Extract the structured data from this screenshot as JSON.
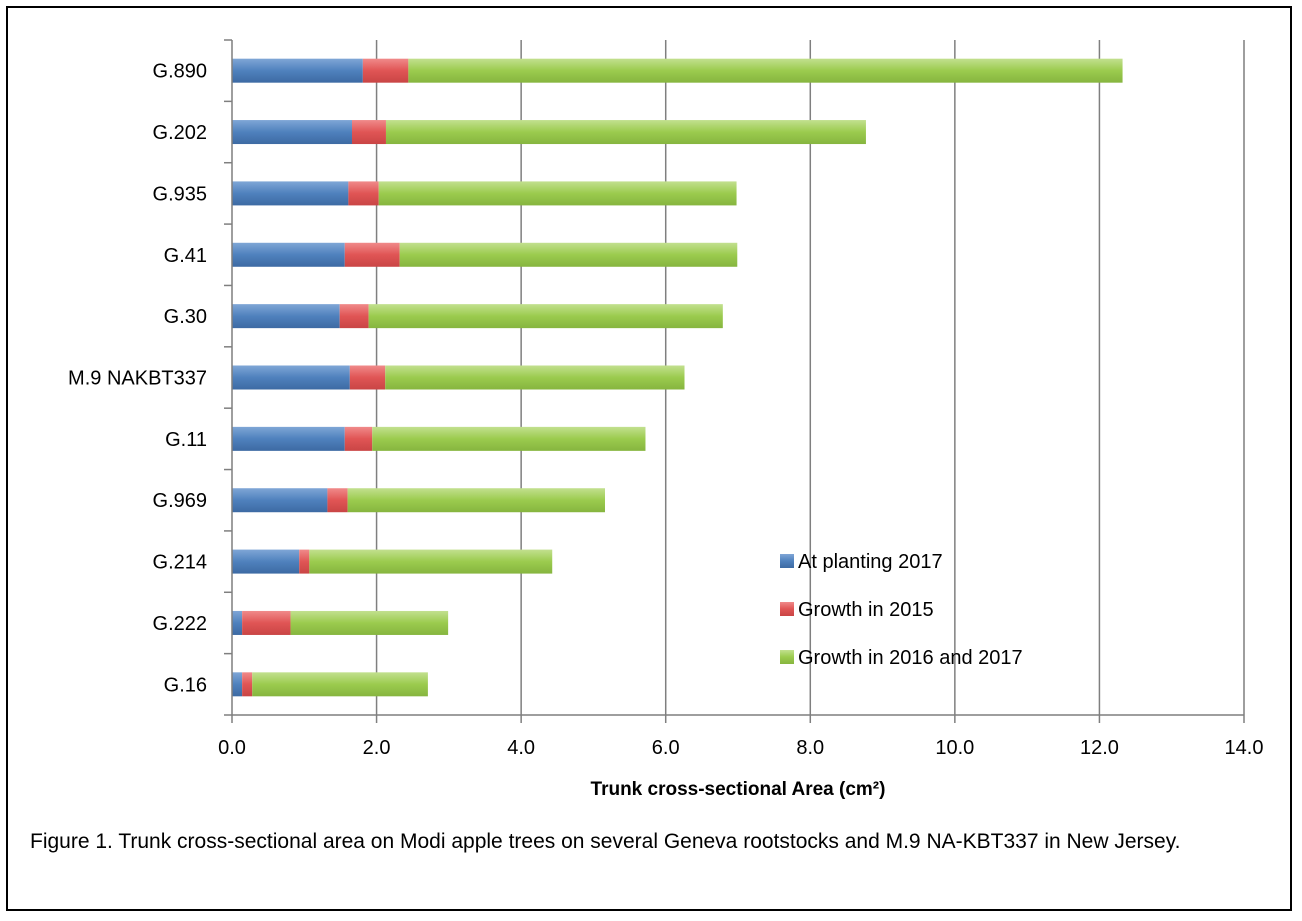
{
  "chart_data": {
    "type": "bar",
    "orientation": "horizontal",
    "stacked": true,
    "categories": [
      "G.890",
      "G.202",
      "G.935",
      "G.41",
      "G.30",
      "M.9 NAKBT337",
      "G.11",
      "G.969",
      "G.214",
      "G.222",
      "G.16"
    ],
    "series": [
      {
        "name": "At planting 2017",
        "color": "#4f81bd",
        "values": [
          1.81,
          1.66,
          1.61,
          1.56,
          1.49,
          1.63,
          1.56,
          1.32,
          0.93,
          0.14,
          0.14
        ]
      },
      {
        "name": "Growth in 2015",
        "color": "#e05555",
        "values": [
          0.63,
          0.47,
          0.42,
          0.76,
          0.4,
          0.49,
          0.38,
          0.28,
          0.14,
          0.67,
          0.14
        ]
      },
      {
        "name": "Growth in 2016 and 2017",
        "color": "#9bcb4e",
        "values": [
          9.88,
          6.64,
          4.95,
          4.67,
          4.9,
          4.14,
          3.78,
          3.56,
          3.36,
          2.18,
          2.43
        ]
      }
    ],
    "xlim": [
      0,
      14
    ],
    "xticks": [
      "0.0",
      "2.0",
      "4.0",
      "6.0",
      "8.0",
      "10.0",
      "12.0",
      "14.0"
    ],
    "xlabel": "Trunk cross-sectional Area (cm²)",
    "ylabel": "",
    "grid": "vertical",
    "legend_position": "bottom-right-inside"
  },
  "caption": "Figure 1.  Trunk cross-sectional area on Modi apple trees on several Geneva rootstocks and M.9 NA-KBT337 in New Jersey."
}
